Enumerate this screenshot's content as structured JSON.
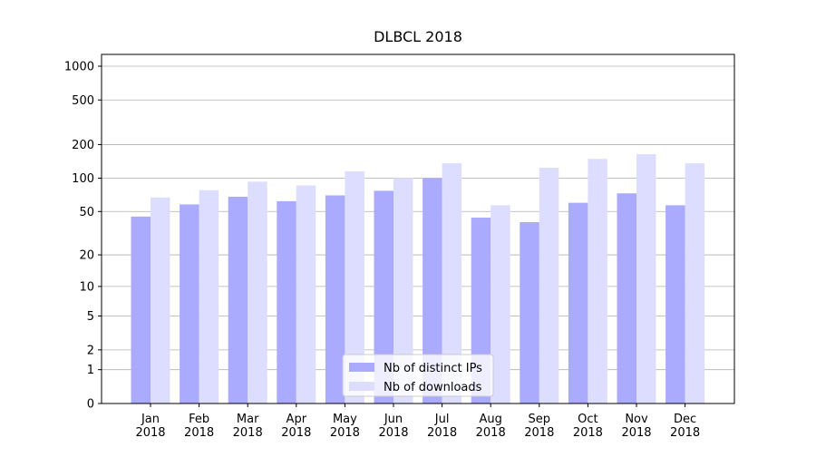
{
  "chart_data": {
    "type": "bar",
    "title": "DLBCL 2018",
    "categories": [
      "Jan\n2018",
      "Feb\n2018",
      "Mar\n2018",
      "Apr\n2018",
      "May\n2018",
      "Jun\n2018",
      "Jul\n2018",
      "Aug\n2018",
      "Sep\n2018",
      "Oct\n2018",
      "Nov\n2018",
      "Dec\n2018"
    ],
    "series": [
      {
        "name": "Nb of distinct IPs",
        "color": "#aaaaff",
        "values": [
          45,
          58,
          68,
          62,
          70,
          77,
          100,
          44,
          40,
          60,
          73,
          57
        ]
      },
      {
        "name": "Nb of downloads",
        "color": "#ddddff",
        "values": [
          67,
          78,
          93,
          86,
          115,
          100,
          136,
          57,
          124,
          149,
          164,
          136
        ]
      }
    ],
    "y_scale": "log1p",
    "ylim": [
      0,
      1273
    ],
    "yticks": [
      0,
      1,
      2,
      5,
      10,
      20,
      50,
      100,
      200,
      500,
      1000
    ],
    "grid": true,
    "legend": "lower center"
  }
}
